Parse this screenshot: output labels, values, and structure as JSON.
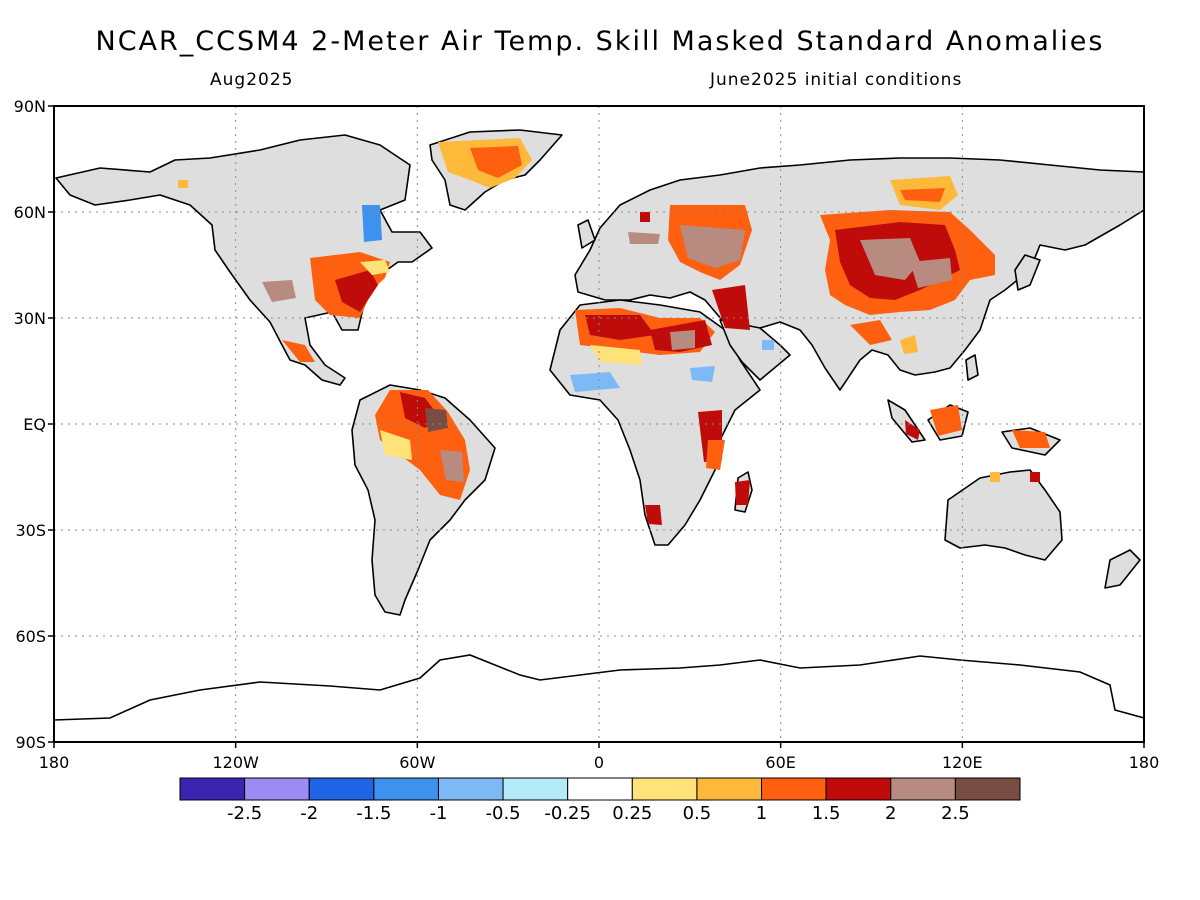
{
  "title": "NCAR_CCSM4 2-Meter Air Temp. Skill Masked Standard Anomalies",
  "subtitle_left": "Aug2025",
  "subtitle_right": "June2025 initial conditions",
  "lat_ticks": [
    "90N",
    "60N",
    "30N",
    "EQ",
    "30S",
    "60S",
    "90S"
  ],
  "lon_ticks": [
    "180",
    "120W",
    "60W",
    "0",
    "60E",
    "120E",
    "180"
  ],
  "colorbar": {
    "colors": [
      "#3a23b0",
      "#9b8bf2",
      "#1f64e4",
      "#3d92ee",
      "#7db9f5",
      "#b4eaf7",
      "#ffffff",
      "#ffe27a",
      "#ffb93a",
      "#ff6010",
      "#c00b0b",
      "#b88b80",
      "#7a4d42"
    ],
    "labels": [
      "-2.5",
      "-2",
      "-1.5",
      "-1",
      "-0.5",
      "-0.25",
      "0.25",
      "0.5",
      "1",
      "1.5",
      "2",
      "2.5"
    ]
  }
}
